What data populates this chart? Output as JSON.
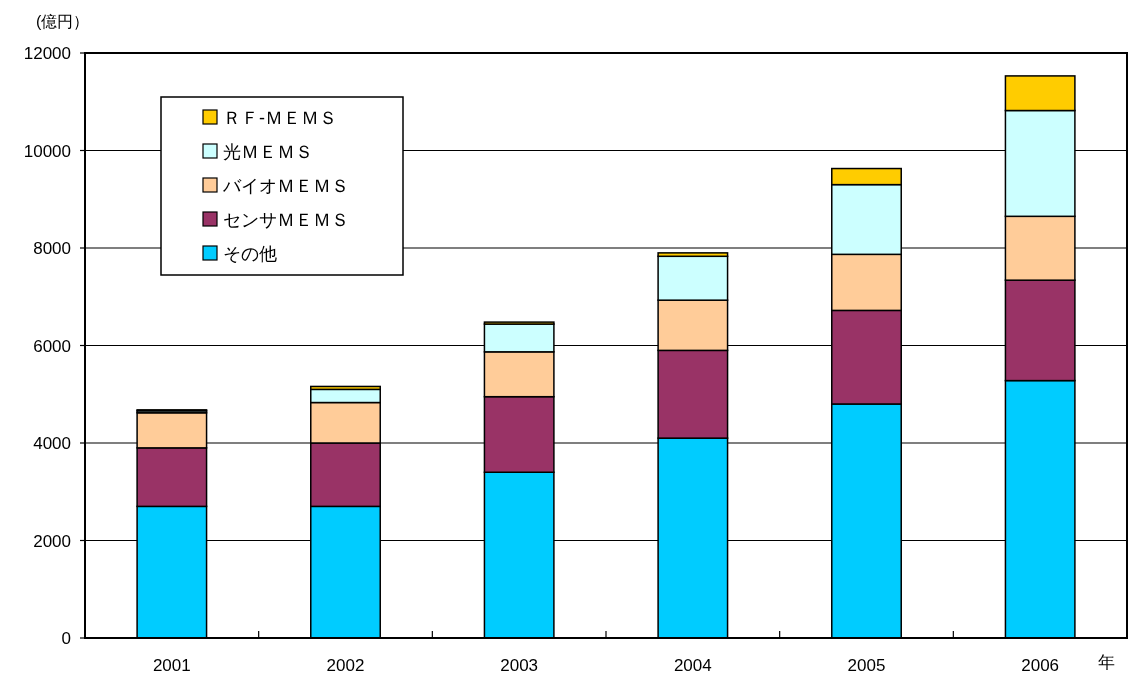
{
  "chart_data": {
    "type": "bar",
    "stacked": true,
    "ylabel": "(億円）",
    "xlabel": "年",
    "categories": [
      "2001",
      "2002",
      "2003",
      "2004",
      "2005",
      "2006"
    ],
    "series": [
      {
        "name": "その他",
        "color": "#00ccff",
        "values": [
          2700,
          2700,
          3400,
          4100,
          4800,
          5280
        ]
      },
      {
        "name": "センサＭＥＭＳ",
        "color": "#993366",
        "values": [
          1200,
          1300,
          1550,
          1800,
          1920,
          2060
        ]
      },
      {
        "name": "バイオＭＥＭＳ",
        "color": "#ffcc99",
        "values": [
          720,
          830,
          920,
          1030,
          1150,
          1310
        ]
      },
      {
        "name": "光ＭＥＭＳ",
        "color": "#ccffff",
        "values": [
          40,
          270,
          570,
          900,
          1430,
          2170
        ]
      },
      {
        "name": "ＲＦ-ＭＥＭＳ",
        "color": "#ffcc00",
        "values": [
          20,
          60,
          40,
          70,
          330,
          710
        ]
      }
    ],
    "ylim": [
      0,
      12000
    ],
    "yticks": [
      0,
      2000,
      4000,
      6000,
      8000,
      10000,
      12000
    ],
    "grid": "y",
    "legend": "top left"
  }
}
